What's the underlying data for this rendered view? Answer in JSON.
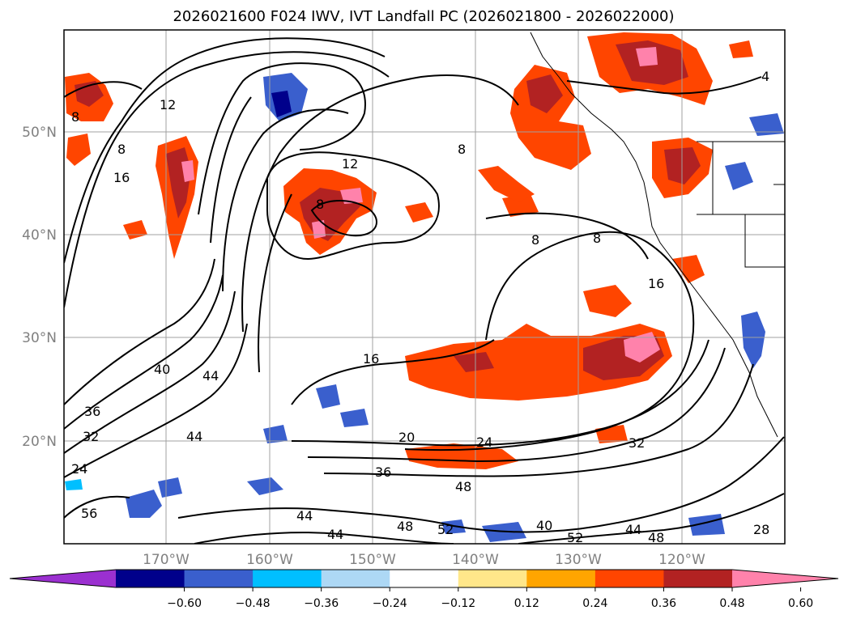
{
  "title": "2026021600 F024 IWV, IVT Landfall PC (2026021800 - 2026022000)",
  "lon_labels": [
    "170°W",
    "160°W",
    "150°W",
    "140°W",
    "130°W",
    "120°W"
  ],
  "lat_labels": [
    "50°N",
    "40°N",
    "30°N",
    "20°N"
  ],
  "colorbar": {
    "ticks": [
      "−0.60",
      "−0.48",
      "−0.36",
      "−0.24",
      "−0.12",
      "0.12",
      "0.24",
      "0.36",
      "0.48",
      "0.60"
    ],
    "colors": [
      "#9b30d0",
      "#00008b",
      "#3a5fcd",
      "#00bfff",
      "#add8f5",
      "#ffffff",
      "#ffe78a",
      "#ffa500",
      "#ff4500",
      "#b22222",
      "#ff82ab"
    ]
  },
  "contour_labels": [
    "4",
    "8",
    "12",
    "16",
    "20",
    "24",
    "28",
    "32",
    "36",
    "40",
    "44",
    "48",
    "52",
    "56"
  ]
}
